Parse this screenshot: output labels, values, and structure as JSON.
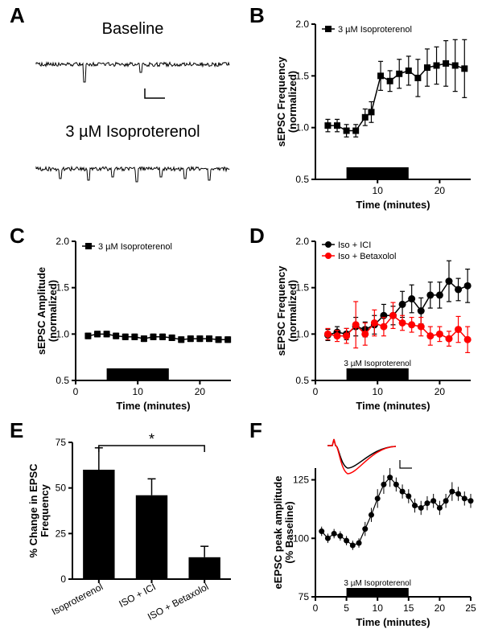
{
  "panel_labels": {
    "A": "A",
    "B": "B",
    "C": "C",
    "D": "D",
    "E": "E",
    "F": "F"
  },
  "colors": {
    "black": "#000000",
    "red": "#ff0000",
    "bg": "#ffffff"
  },
  "panelA": {
    "title1": "Baseline",
    "title2": "3 µM Isoproterenol",
    "title_fontsize": 20
  },
  "panelB": {
    "type": "scatter-line",
    "legend": "3 µM Isoproterenol",
    "xlabel": "Time (minutes)",
    "ylabel": "sEPSC Frequency\n(normalized)",
    "xlim": [
      0,
      25
    ],
    "ylim": [
      0.5,
      2.0
    ],
    "xticks": [
      10,
      20
    ],
    "yticks": [
      0.5,
      1.0,
      1.5,
      2.0
    ],
    "bar_x": [
      5,
      15
    ],
    "series": [
      {
        "color": "#000000",
        "marker": "square",
        "x": [
          2,
          3.5,
          5,
          6.5,
          8,
          9,
          10.5,
          12,
          13.5,
          15,
          16.5,
          18,
          19.5,
          21,
          22.5,
          24
        ],
        "y": [
          1.02,
          1.02,
          0.97,
          0.97,
          1.1,
          1.15,
          1.5,
          1.45,
          1.52,
          1.55,
          1.48,
          1.58,
          1.6,
          1.62,
          1.6,
          1.57
        ],
        "err": [
          0.06,
          0.06,
          0.06,
          0.06,
          0.08,
          0.1,
          0.14,
          0.1,
          0.14,
          0.14,
          0.18,
          0.18,
          0.18,
          0.22,
          0.25,
          0.28
        ]
      }
    ]
  },
  "panelC": {
    "type": "scatter-line",
    "legend": "3 µM Isoproterenol",
    "xlabel": "Time (minutes)",
    "ylabel": "sEPSC Amplitude\n(normalized)",
    "xlim": [
      0,
      25
    ],
    "ylim": [
      0.5,
      2.0
    ],
    "xticks": [
      0,
      10,
      20
    ],
    "yticks": [
      0.5,
      1.0,
      1.5,
      2.0
    ],
    "bar_x": [
      5,
      15
    ],
    "series": [
      {
        "color": "#000000",
        "marker": "square",
        "x": [
          2,
          3.5,
          5,
          6.5,
          8,
          9.5,
          11,
          12.5,
          14,
          15.5,
          17,
          18.5,
          20,
          21.5,
          23,
          24.5
        ],
        "y": [
          0.98,
          1.0,
          1.0,
          0.98,
          0.97,
          0.97,
          0.95,
          0.97,
          0.97,
          0.96,
          0.94,
          0.95,
          0.95,
          0.95,
          0.94,
          0.94
        ],
        "err": [
          0.03,
          0.03,
          0.03,
          0.03,
          0.03,
          0.03,
          0.03,
          0.03,
          0.03,
          0.03,
          0.03,
          0.03,
          0.03,
          0.03,
          0.03,
          0.03
        ]
      }
    ]
  },
  "panelD": {
    "type": "scatter-line",
    "legends": [
      "Iso + ICI",
      "Iso + Betaxolol"
    ],
    "xlabel": "Time (minutes)",
    "ylabel": "sEPSC Frequency\n(normalized)",
    "xlim": [
      0,
      25
    ],
    "ylim": [
      0.5,
      2.0
    ],
    "xticks": [
      0,
      10,
      20
    ],
    "yticks": [
      0.5,
      1.0,
      1.5,
      2.0
    ],
    "bar_x": [
      5,
      15
    ],
    "bar_label": "3 µM Isoproterenol",
    "series": [
      {
        "color": "#000000",
        "marker": "circle",
        "x": [
          2,
          3.5,
          5,
          6.5,
          8,
          9.5,
          11,
          12.5,
          14,
          15.5,
          17,
          18.5,
          20,
          21.5,
          23,
          24.5
        ],
        "y": [
          0.99,
          1.02,
          1.0,
          1.08,
          1.05,
          1.1,
          1.2,
          1.2,
          1.32,
          1.38,
          1.25,
          1.42,
          1.42,
          1.57,
          1.48,
          1.52
        ],
        "err": [
          0.06,
          0.06,
          0.06,
          0.1,
          0.08,
          0.1,
          0.12,
          0.1,
          0.14,
          0.15,
          0.14,
          0.14,
          0.14,
          0.22,
          0.12,
          0.18
        ]
      },
      {
        "color": "#ff0000",
        "marker": "circle",
        "x": [
          2,
          3.5,
          5,
          6.5,
          8,
          9.5,
          11,
          12.5,
          14,
          15.5,
          17,
          18.5,
          20,
          21.5,
          23,
          24.5
        ],
        "y": [
          1.0,
          0.98,
          0.98,
          1.1,
          1.0,
          1.12,
          1.08,
          1.2,
          1.12,
          1.1,
          1.08,
          0.98,
          1.0,
          0.95,
          1.05,
          0.94
        ],
        "err": [
          0.06,
          0.06,
          0.08,
          0.25,
          0.12,
          0.14,
          0.1,
          0.14,
          0.08,
          0.08,
          0.1,
          0.1,
          0.08,
          0.08,
          0.14,
          0.14
        ]
      }
    ]
  },
  "panelE": {
    "type": "bar",
    "xlabel": "",
    "ylabel": "% Change in EPSC\nFrequency",
    "ylim": [
      0,
      75
    ],
    "yticks": [
      0,
      25,
      50,
      75
    ],
    "categories": [
      "Isoproterenol",
      "ISO + ICI",
      "ISO + Betaxolol"
    ],
    "values": [
      60,
      46,
      12
    ],
    "errors": [
      12,
      9,
      6
    ],
    "bar_color": "#000000",
    "sig_label": "*",
    "sig_between": [
      0,
      2
    ]
  },
  "panelF": {
    "type": "scatter-line",
    "xlabel": "Time (minutes)",
    "ylabel": "eEPSC peak amplitude\n(% Baseline)",
    "xlim": [
      0,
      25
    ],
    "ylim": [
      75,
      130
    ],
    "xticks": [
      0,
      5,
      10,
      15,
      20,
      25
    ],
    "yticks": [
      75,
      100,
      125
    ],
    "bar_x": [
      5,
      15
    ],
    "bar_label": "3 µM Isoproterenol",
    "inset_colors": [
      "#000000",
      "#ff0000"
    ],
    "series": [
      {
        "color": "#000000",
        "marker": "circle",
        "x": [
          1,
          2,
          3,
          4,
          5,
          6,
          7,
          8,
          9,
          10,
          11,
          12,
          13,
          14,
          15,
          16,
          17,
          18,
          19,
          20,
          21,
          22,
          23,
          24,
          25
        ],
        "y": [
          103,
          100,
          102,
          101,
          99,
          97,
          98,
          104,
          110,
          117,
          123,
          126,
          123,
          120,
          118,
          114,
          113,
          115,
          116,
          113,
          116,
          120,
          119,
          117,
          116
        ],
        "err": [
          2,
          2,
          2,
          2,
          2,
          2,
          2,
          3,
          3,
          4,
          4,
          4,
          3,
          3,
          3,
          3,
          3,
          3,
          3,
          3,
          3,
          4,
          3,
          3,
          3
        ]
      }
    ]
  }
}
